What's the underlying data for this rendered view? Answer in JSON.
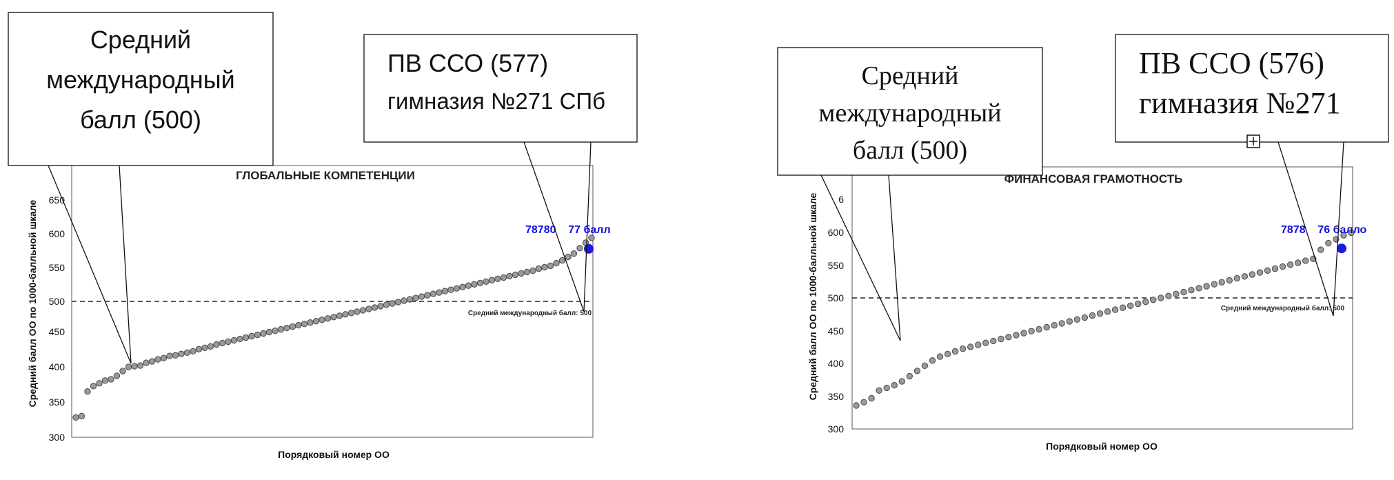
{
  "chart_data": [
    {
      "type": "scatter",
      "title": "ГЛОБАЛЬНЫЕ КОМПЕТЕНЦИИ",
      "xlabel": "Порядковый номер ОО",
      "ylabel": "Средний балл ОО по 1000-балльной шкале",
      "ylim": [
        300,
        670
      ],
      "yticks": [
        "300",
        "350",
        "400",
        "450",
        "500",
        "550",
        "600",
        "650"
      ],
      "reference_line": {
        "y": 500,
        "label": "Средний международный балл: 500"
      },
      "points": [
        330,
        332,
        368,
        376,
        380,
        384,
        386,
        391,
        398,
        404,
        405,
        406,
        410,
        412,
        415,
        417,
        420,
        421,
        423,
        425,
        427,
        430,
        432,
        434,
        437,
        439,
        441,
        443,
        445,
        447,
        449,
        451,
        453,
        455,
        457,
        459,
        461,
        463,
        465,
        467,
        469,
        471,
        473,
        475,
        477,
        479,
        481,
        483,
        485,
        487,
        489,
        491,
        493,
        495,
        497,
        499,
        501,
        503,
        505,
        507,
        509,
        511,
        513,
        515,
        517,
        519,
        521,
        523,
        525,
        527,
        529,
        531,
        533,
        535,
        537,
        539,
        541,
        543,
        545,
        548,
        550,
        552,
        556,
        560,
        565,
        570,
        578,
        586,
        593
      ],
      "highlight": {
        "value": 577,
        "color": "#1a1ae0"
      },
      "highlight_label": "78780    77 балл",
      "callouts": [
        {
          "lines": [
            "Средний",
            "международный",
            "балл (500)"
          ]
        },
        {
          "lines": [
            "ПВ ССО (577)",
            "гимназия №271 СПб"
          ]
        }
      ]
    },
    {
      "type": "scatter",
      "title": "ФИНАНСОВАЯ ГРАМОТНОСТЬ",
      "xlabel": "Порядковый номер ОО",
      "ylabel": "Средний балл ОО по 1000-балльной шкале",
      "ylim": [
        300,
        665
      ],
      "yticks": [
        "300",
        "350",
        "400",
        "450",
        "500",
        "550",
        "600",
        "6"
      ],
      "reference_line": {
        "y": 500,
        "label": "Средний международный балл: 500"
      },
      "points": [
        335,
        340,
        346,
        358,
        362,
        366,
        372,
        380,
        388,
        396,
        404,
        410,
        414,
        418,
        422,
        425,
        428,
        431,
        434,
        437,
        440,
        443,
        446,
        449,
        452,
        455,
        458,
        461,
        464,
        467,
        470,
        473,
        476,
        479,
        482,
        485,
        488,
        491,
        494,
        497,
        500,
        503,
        506,
        509,
        512,
        515,
        518,
        521,
        524,
        527,
        530,
        533,
        536,
        539,
        542,
        545,
        548,
        551,
        554,
        557,
        560,
        574,
        584,
        590,
        596,
        600
      ],
      "highlight": {
        "value": 576,
        "color": "#1a1ae0"
      },
      "highlight_label": "7878    76 балло",
      "callouts": [
        {
          "lines": [
            "Средний",
            "международный",
            "балл (500)"
          ]
        },
        {
          "lines": [
            "ПВ ССО (576)",
            "гимназия №271"
          ]
        }
      ]
    }
  ],
  "icons": {
    "move_handle": "move-handle-icon"
  }
}
